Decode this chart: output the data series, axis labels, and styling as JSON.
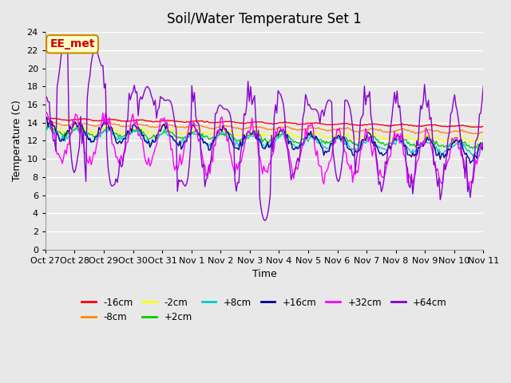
{
  "title": "Soil/Water Temperature Set 1",
  "xlabel": "Time",
  "ylabel": "Temperature (C)",
  "ylim": [
    0,
    24
  ],
  "yticks": [
    0,
    2,
    4,
    6,
    8,
    10,
    12,
    14,
    16,
    18,
    20,
    22,
    24
  ],
  "x_labels": [
    "Oct 27",
    "Oct 28",
    "Oct 29",
    "Oct 30",
    "Oct 31",
    "Nov 1",
    "Nov 2",
    "Nov 3",
    "Nov 4",
    "Nov 5",
    "Nov 6",
    "Nov 7",
    "Nov 8",
    "Nov 9",
    "Nov 10",
    "Nov 11"
  ],
  "num_points": 336,
  "background_color": "#e8e8e8",
  "plot_bg_color": "#e8e8e8",
  "grid_color": "#ffffff",
  "annotation_text": "EE_met",
  "annotation_bg": "#ffffcc",
  "annotation_border": "#cc8800",
  "annotation_text_color": "#cc0000",
  "series": {
    "-16cm": {
      "color": "#ff0000"
    },
    "-8cm": {
      "color": "#ff8800"
    },
    "-2cm": {
      "color": "#ffff00"
    },
    "+2cm": {
      "color": "#00cc00"
    },
    "+8cm": {
      "color": "#00cccc"
    },
    "+16cm": {
      "color": "#000099"
    },
    "+32cm": {
      "color": "#ff00ff"
    },
    "+64cm": {
      "color": "#8800cc"
    }
  },
  "figsize": [
    6.4,
    4.8
  ],
  "dpi": 100
}
